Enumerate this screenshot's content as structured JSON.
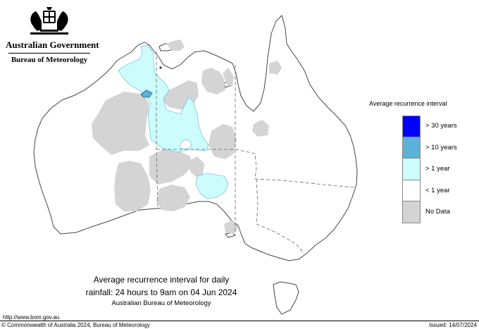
{
  "header": {
    "government": "Australian Government",
    "bureau": "Bureau of Meteorology"
  },
  "legend": {
    "title": "Average recurrence interval",
    "items": [
      {
        "label": "> 30 years",
        "color": "#0000ff"
      },
      {
        "label": "> 10 years",
        "color": "#5bb2d8"
      },
      {
        "label": "> 1 year",
        "color": "#ccfcfc"
      },
      {
        "label": "< 1 year",
        "color": "#ffffff"
      },
      {
        "label": "No Data",
        "color": "#d4d4d4"
      }
    ]
  },
  "caption": {
    "line1": "Average recurrence interval for daily",
    "line2": "rainfall: 24 hours to 9am on 04 Jun 2024",
    "line3": "Australian Bureau of Meteorology"
  },
  "footer": {
    "url": "http://www.bom.gov.au",
    "copyright": "© Commonwealth of Australia 2024, Bureau of Meteorology",
    "issued": "Issued: 14/07/2024"
  },
  "map_colors": {
    "land_fill": "#ffffff",
    "outline": "#444444",
    "no_data": "#d4d4d4",
    "gt_1_year": "#ccfcfc",
    "gt_10_years": "#5bb2d8",
    "gt_30_years": "#0000ff"
  }
}
